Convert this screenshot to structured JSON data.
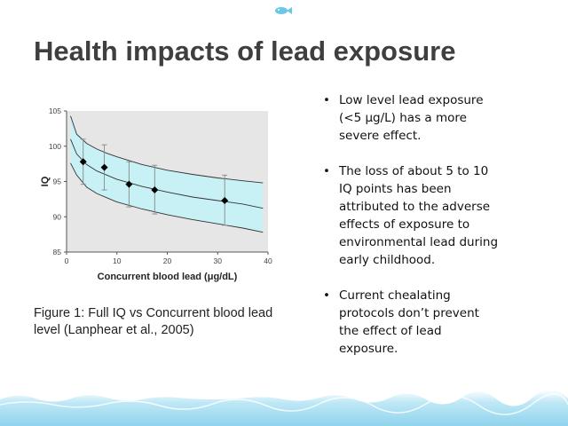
{
  "slide": {
    "title": "Health impacts of lead exposure",
    "caption": "Figure 1: Full IQ vs Concurrent blood lead level (Lanphear et al., 2005)",
    "bullets": [
      "Low level lead exposure (<5 μg/L) has a more severe effect.",
      "The loss of about 5 to 10 IQ points has been attributed to the adverse effects of exposure to environmental lead during early childhood.",
      "Current chealating protocols don’t prevent the effect of lead exposure."
    ],
    "bullet_glyph": "•"
  },
  "colors": {
    "band_fill": "#c8f1f6",
    "plot_bg": "#e6e6e6",
    "curve": "#333333",
    "marker": "#000000",
    "error_bar": "#888888",
    "water": "#8fd3ec",
    "title": "#3f3f3f"
  },
  "icons": {
    "top_ornament": "fish-icon",
    "footer": "water-wave-decoration"
  },
  "chart_data": {
    "type": "scatter",
    "xlabel": "Concurrent blood lead (μg/dL)",
    "ylabel": "IQ",
    "xlim": [
      0,
      40
    ],
    "ylim": [
      85,
      105
    ],
    "xticks": [
      0,
      10,
      20,
      30,
      40
    ],
    "yticks": [
      85,
      90,
      95,
      100,
      105
    ],
    "grid": false,
    "legend": "none",
    "points": [
      {
        "x": 3.3,
        "y": 97.8,
        "err_low": 94.6,
        "err_high": 101.0
      },
      {
        "x": 7.5,
        "y": 97.0,
        "err_low": 93.8,
        "err_high": 100.2
      },
      {
        "x": 12.4,
        "y": 94.6,
        "err_low": 91.4,
        "err_high": 97.8
      },
      {
        "x": 17.5,
        "y": 93.8,
        "err_low": 90.4,
        "err_high": 97.3
      },
      {
        "x": 31.4,
        "y": 92.3,
        "err_low": 88.8,
        "err_high": 95.9
      }
    ],
    "fit_curve": {
      "x": [
        0.8,
        2,
        4,
        6,
        8,
        10,
        15,
        20,
        25,
        30,
        35,
        39
      ],
      "y": [
        101.0,
        98.9,
        97.4,
        96.5,
        95.9,
        95.3,
        94.3,
        93.5,
        92.8,
        92.3,
        91.8,
        91.2
      ],
      "upper": [
        104.3,
        101.7,
        100.4,
        99.6,
        99.0,
        98.5,
        97.4,
        96.6,
        96.0,
        95.5,
        95.1,
        94.8
      ],
      "lower": [
        97.6,
        95.9,
        94.2,
        93.3,
        92.7,
        92.1,
        91.1,
        90.3,
        89.6,
        89.0,
        88.4,
        87.8
      ]
    }
  }
}
